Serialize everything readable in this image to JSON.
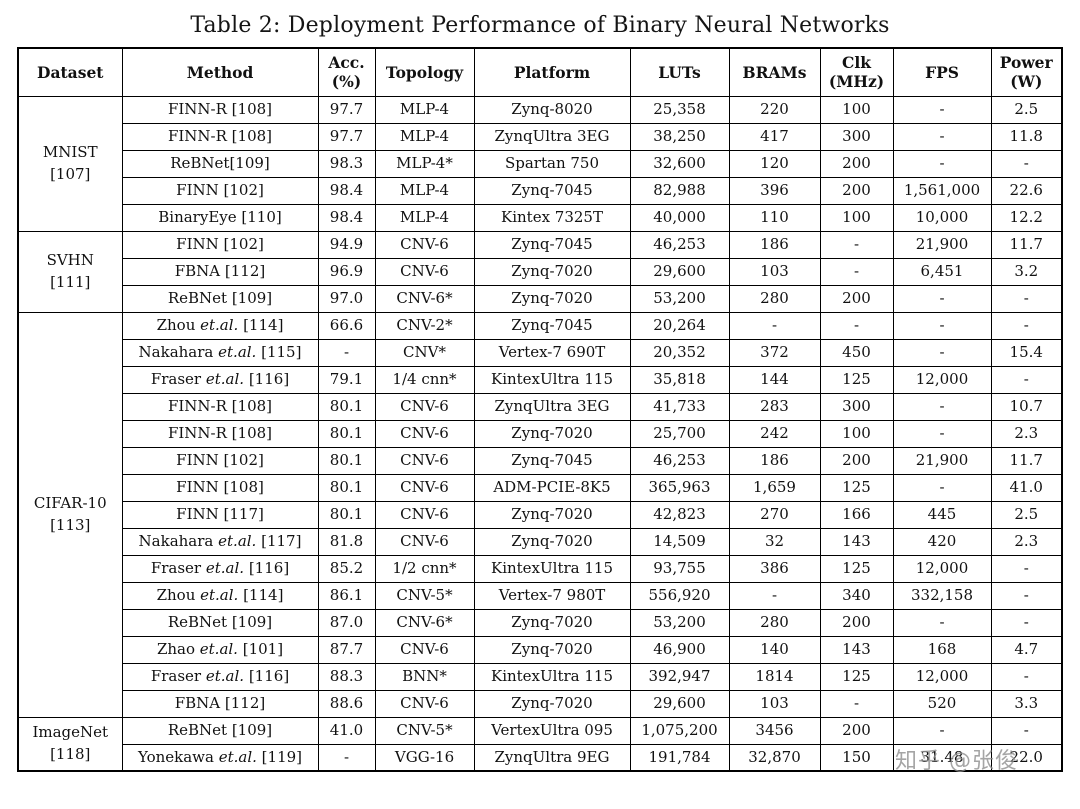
{
  "title": "Table 2: Deployment Performance of Binary Neural Networks",
  "watermark": "知乎 @张俊",
  "table": {
    "columns": [
      {
        "line1": "Dataset",
        "line2": ""
      },
      {
        "line1": "Method",
        "line2": ""
      },
      {
        "line1": "Acc.",
        "line2": "(%)"
      },
      {
        "line1": "Topology",
        "line2": ""
      },
      {
        "line1": "Platform",
        "line2": ""
      },
      {
        "line1": "LUTs",
        "line2": ""
      },
      {
        "line1": "BRAMs",
        "line2": ""
      },
      {
        "line1": "Clk",
        "line2": "(MHz)"
      },
      {
        "line1": "FPS",
        "line2": ""
      },
      {
        "line1": "Power",
        "line2": "(W)"
      }
    ],
    "groups": [
      {
        "dataset": "MNIST",
        "ref": "[107]",
        "rows": [
          {
            "method": "FINN-R [108]",
            "acc": "97.7",
            "topology": "MLP-4",
            "platform": "Zynq-8020",
            "luts": "25,358",
            "brams": "220",
            "clk": "100",
            "fps": "-",
            "power": "2.5"
          },
          {
            "method": "FINN-R [108]",
            "acc": "97.7",
            "topology": "MLP-4",
            "platform": "ZynqUltra 3EG",
            "luts": "38,250",
            "brams": "417",
            "clk": "300",
            "fps": "-",
            "power": "11.8"
          },
          {
            "method": "ReBNet[109]",
            "acc": "98.3",
            "topology": "MLP-4*",
            "platform": "Spartan 750",
            "luts": "32,600",
            "brams": "120",
            "clk": "200",
            "fps": "-",
            "power": "-"
          },
          {
            "method": "FINN [102]",
            "acc": "98.4",
            "topology": "MLP-4",
            "platform": "Zynq-7045",
            "luts": "82,988",
            "brams": "396",
            "clk": "200",
            "fps": "1,561,000",
            "power": "22.6"
          },
          {
            "method": "BinaryEye [110]",
            "acc": "98.4",
            "topology": "MLP-4",
            "platform": "Kintex 7325T",
            "luts": "40,000",
            "brams": "110",
            "clk": "100",
            "fps": "10,000",
            "power": "12.2"
          }
        ]
      },
      {
        "dataset": "SVHN",
        "ref": "[111]",
        "rows": [
          {
            "method": "FINN [102]",
            "acc": "94.9",
            "topology": "CNV-6",
            "platform": "Zynq-7045",
            "luts": "46,253",
            "brams": "186",
            "clk": "-",
            "fps": "21,900",
            "power": "11.7"
          },
          {
            "method": "FBNA [112]",
            "acc": "96.9",
            "topology": "CNV-6",
            "platform": "Zynq-7020",
            "luts": "29,600",
            "brams": "103",
            "clk": "-",
            "fps": "6,451",
            "power": "3.2"
          },
          {
            "method": "ReBNet [109]",
            "acc": "97.0",
            "topology": "CNV-6*",
            "platform": "Zynq-7020",
            "luts": "53,200",
            "brams": "280",
            "clk": "200",
            "fps": "-",
            "power": "-"
          }
        ]
      },
      {
        "dataset": "CIFAR-10",
        "ref": "[113]",
        "rows": [
          {
            "method": "Zhou et.al. [114]",
            "acc": "66.6",
            "topology": "CNV-2*",
            "platform": "Zynq-7045",
            "luts": "20,264",
            "brams": "-",
            "clk": "-",
            "fps": "-",
            "power": "-"
          },
          {
            "method": "Nakahara et.al. [115]",
            "acc": "-",
            "topology": "CNV*",
            "platform": "Vertex-7 690T",
            "luts": "20,352",
            "brams": "372",
            "clk": "450",
            "fps": "-",
            "power": "15.4"
          },
          {
            "method": "Fraser et.al. [116]",
            "acc": "79.1",
            "topology": "1/4 cnn*",
            "platform": "KintexUltra 115",
            "luts": "35,818",
            "brams": "144",
            "clk": "125",
            "fps": "12,000",
            "power": "-"
          },
          {
            "method": "FINN-R [108]",
            "acc": "80.1",
            "topology": "CNV-6",
            "platform": "ZynqUltra 3EG",
            "luts": "41,733",
            "brams": "283",
            "clk": "300",
            "fps": "-",
            "power": "10.7"
          },
          {
            "method": "FINN-R [108]",
            "acc": "80.1",
            "topology": "CNV-6",
            "platform": "Zynq-7020",
            "luts": "25,700",
            "brams": "242",
            "clk": "100",
            "fps": "-",
            "power": "2.3"
          },
          {
            "method": "FINN [102]",
            "acc": "80.1",
            "topology": "CNV-6",
            "platform": "Zynq-7045",
            "luts": "46,253",
            "brams": "186",
            "clk": "200",
            "fps": "21,900",
            "power": "11.7"
          },
          {
            "method": "FINN [108]",
            "acc": "80.1",
            "topology": "CNV-6",
            "platform": "ADM-PCIE-8K5",
            "luts": "365,963",
            "brams": "1,659",
            "clk": "125",
            "fps": "-",
            "power": "41.0"
          },
          {
            "method": "FINN [117]",
            "acc": "80.1",
            "topology": "CNV-6",
            "platform": "Zynq-7020",
            "luts": "42,823",
            "brams": "270",
            "clk": "166",
            "fps": "445",
            "power": "2.5"
          },
          {
            "method": "Nakahara et.al. [117]",
            "acc": "81.8",
            "topology": "CNV-6",
            "platform": "Zynq-7020",
            "luts": "14,509",
            "brams": "32",
            "clk": "143",
            "fps": "420",
            "power": "2.3"
          },
          {
            "method": "Fraser et.al. [116]",
            "acc": "85.2",
            "topology": "1/2 cnn*",
            "platform": "KintexUltra 115",
            "luts": "93,755",
            "brams": "386",
            "clk": "125",
            "fps": "12,000",
            "power": "-"
          },
          {
            "method": "Zhou et.al. [114]",
            "acc": "86.1",
            "topology": "CNV-5*",
            "platform": "Vertex-7 980T",
            "luts": "556,920",
            "brams": "-",
            "clk": "340",
            "fps": "332,158",
            "power": "-"
          },
          {
            "method": "ReBNet [109]",
            "acc": "87.0",
            "topology": "CNV-6*",
            "platform": "Zynq-7020",
            "luts": "53,200",
            "brams": "280",
            "clk": "200",
            "fps": "-",
            "power": "-"
          },
          {
            "method": "Zhao et.al. [101]",
            "acc": "87.7",
            "topology": "CNV-6",
            "platform": "Zynq-7020",
            "luts": "46,900",
            "brams": "140",
            "clk": "143",
            "fps": "168",
            "power": "4.7"
          },
          {
            "method": "Fraser et.al. [116]",
            "acc": "88.3",
            "topology": "BNN*",
            "platform": "KintexUltra 115",
            "luts": "392,947",
            "brams": "1814",
            "clk": "125",
            "fps": "12,000",
            "power": "-"
          },
          {
            "method": "FBNA [112]",
            "acc": "88.6",
            "topology": "CNV-6",
            "platform": "Zynq-7020",
            "luts": "29,600",
            "brams": "103",
            "clk": "-",
            "fps": "520",
            "power": "3.3"
          }
        ]
      },
      {
        "dataset": "ImageNet",
        "ref": "[118]",
        "rows": [
          {
            "method": "ReBNet [109]",
            "acc": "41.0",
            "topology": "CNV-5*",
            "platform": "VertexUltra 095",
            "luts": "1,075,200",
            "brams": "3456",
            "clk": "200",
            "fps": "-",
            "power": "-"
          },
          {
            "method": "Yonekawa et.al. [119]",
            "acc": "-",
            "topology": "VGG-16",
            "platform": "ZynqUltra 9EG",
            "luts": "191,784",
            "brams": "32,870",
            "clk": "150",
            "fps": "31.48",
            "power": "22.0"
          }
        ]
      }
    ]
  }
}
